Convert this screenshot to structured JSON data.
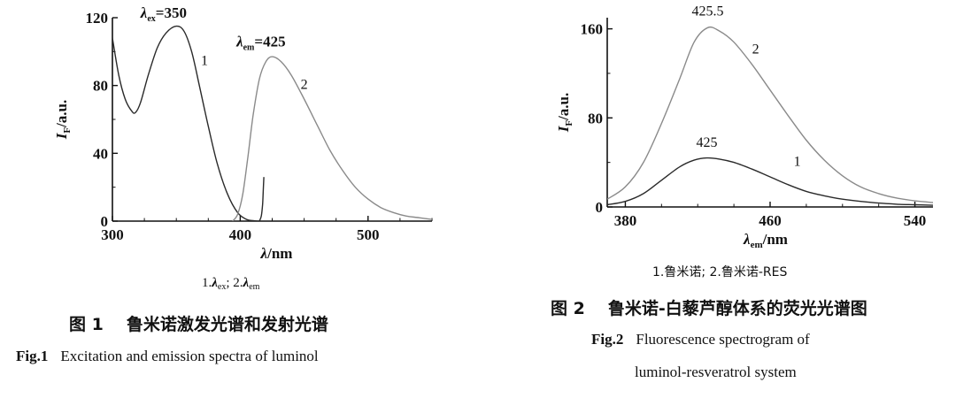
{
  "chart_data": [
    {
      "type": "line",
      "xlabel": "λ/nm",
      "ylabel": "IF/a.u.",
      "xlim": [
        300,
        550
      ],
      "ylim": [
        0,
        120
      ],
      "xticks": [
        "300",
        "400",
        "500"
      ],
      "xtick_values": [
        300,
        400,
        500
      ],
      "yticks": [
        "0",
        "40",
        "80",
        "120"
      ],
      "ytick_values": [
        0,
        40,
        80,
        120
      ],
      "series": [
        {
          "name": "1",
          "color": "#2a2a2a",
          "x": [
            300,
            305,
            310,
            315,
            318,
            322,
            328,
            335,
            342,
            350,
            356,
            362,
            368,
            375,
            382,
            390,
            398,
            405,
            410,
            415
          ],
          "y": [
            108,
            86,
            72,
            65,
            64,
            70,
            86,
            102,
            111,
            115,
            112,
            100,
            80,
            56,
            34,
            16,
            5,
            1,
            0.3,
            0
          ]
        },
        {
          "name": "2",
          "color": "#8a8a8a",
          "x": [
            394,
            398,
            402,
            406,
            410,
            415,
            420,
            425,
            432,
            440,
            450,
            460,
            470,
            480,
            490,
            500,
            510,
            520,
            530,
            540,
            550
          ],
          "y": [
            0,
            4,
            16,
            38,
            62,
            84,
            94,
            97,
            94,
            86,
            72,
            57,
            42,
            30,
            20,
            13,
            8,
            5,
            3,
            2,
            1
          ]
        },
        {
          "name": "",
          "color": "#2a2a2a",
          "x": [
            415,
            416.5,
            417.5,
            418,
            418.5
          ],
          "y": [
            0,
            3,
            10,
            18,
            26
          ]
        }
      ],
      "annotations": [
        {
          "text": "1",
          "x": 372,
          "y": 92
        },
        {
          "text": "2",
          "x": 450,
          "y": 78
        }
      ],
      "peak_labels": [
        {
          "symbol": "λ",
          "sub": "ex",
          "value": "=350",
          "x": 322,
          "y": 120
        },
        {
          "symbol": "λ",
          "sub": "em",
          "value": "=425",
          "x": 397,
          "y": 103
        }
      ],
      "legend": {
        "item1_num": "1.",
        "item1_sym": "λ",
        "item1_sub": "ex",
        "sep": "; ",
        "item2_num": "2.",
        "item2_sym": "λ",
        "item2_sub": "em"
      },
      "caption_cn_fig": "图 1",
      "caption_cn": "鲁米诺激发光谱和发射光谱",
      "caption_en_fig": "Fig.1",
      "caption_en": "Excitation and emission spectra of luminol"
    },
    {
      "type": "line",
      "xlabel": "λem/nm",
      "ylabel": "IF/a.u.",
      "xlim": [
        370,
        550
      ],
      "ylim": [
        0,
        170
      ],
      "xticks": [
        "380",
        "460",
        "540"
      ],
      "xtick_values": [
        380,
        460,
        540
      ],
      "yticks": [
        "0",
        "80",
        "160"
      ],
      "ytick_values": [
        0,
        80,
        160
      ],
      "series": [
        {
          "name": "1",
          "color": "#2a2a2a",
          "x": [
            370,
            380,
            390,
            400,
            410,
            418,
            425,
            432,
            440,
            450,
            460,
            470,
            480,
            490,
            500,
            510,
            520,
            530,
            540,
            550
          ],
          "y": [
            2,
            5,
            12,
            24,
            36,
            42,
            44,
            43,
            40,
            34,
            27,
            20,
            14,
            10,
            7,
            5,
            3.5,
            2.5,
            2,
            1.5
          ]
        },
        {
          "name": "2",
          "color": "#8a8a8a",
          "x": [
            370,
            380,
            390,
            400,
            410,
            418,
            425.5,
            432,
            440,
            450,
            460,
            470,
            480,
            490,
            500,
            510,
            520,
            530,
            540,
            550
          ],
          "y": [
            7,
            18,
            40,
            75,
            115,
            148,
            161,
            158,
            148,
            128,
            105,
            82,
            60,
            42,
            28,
            18,
            12,
            8,
            5.5,
            4
          ]
        }
      ],
      "annotations": [
        {
          "text": "1",
          "x": 475,
          "y": 37
        },
        {
          "text": "2",
          "x": 452,
          "y": 138
        }
      ],
      "peak_labels": [
        {
          "text": "425.5",
          "x": 425.5,
          "y": 169
        },
        {
          "text": "425",
          "x": 425,
          "y": 51
        }
      ],
      "legend": {
        "text": "1.鲁米诺; 2.鲁米诺-RES"
      },
      "caption_cn_fig": "图 2",
      "caption_cn": "鲁米诺-白藜芦醇体系的荧光光谱图",
      "caption_en_fig": "Fig.2",
      "caption_en_1": "Fluorescence spectrogram of",
      "caption_en_2": "luminol-resveratrol system"
    }
  ]
}
